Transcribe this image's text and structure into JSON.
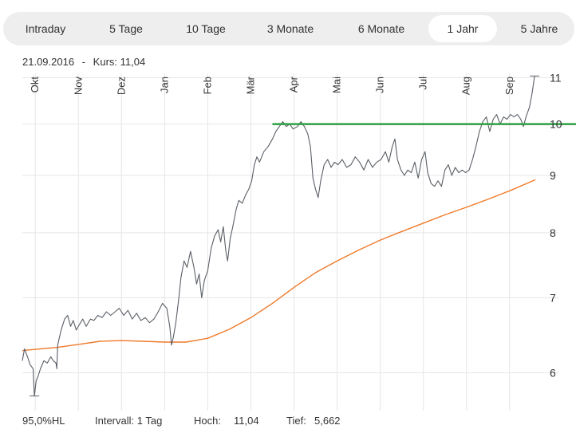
{
  "tabs": [
    {
      "label": "Intraday",
      "active": false
    },
    {
      "label": "5 Tage",
      "active": false
    },
    {
      "label": "10 Tage",
      "active": false
    },
    {
      "label": "3 Monate",
      "active": false
    },
    {
      "label": "6 Monate",
      "active": false
    },
    {
      "label": "1 Jahr",
      "active": true
    },
    {
      "label": "5 Jahre",
      "active": false
    }
  ],
  "info": {
    "date": "21.09.2016",
    "separator": "-",
    "price_label": "Kurs: 11,04"
  },
  "footer": {
    "hl": "95,0%HL",
    "interval": "Intervall: 1 Tag",
    "high_label": "Hoch:",
    "high_value": "11,04",
    "low_label": "Tief:",
    "low_value": "5,662"
  },
  "colors": {
    "price": "#5a5f66",
    "moving_average": "#f07a2a",
    "resistance": "#2ea043",
    "grid": "#e6e6e6"
  },
  "chart_data": {
    "type": "line",
    "x_unit": "month index (0 = start of Oktober 2015)",
    "xlim": [
      -0.3,
      11.8
    ],
    "ylim": [
      5.55,
      11.1
    ],
    "y_scale": "log",
    "month_ticks": [
      {
        "label": "Okt",
        "x": 0
      },
      {
        "label": "Nov",
        "x": 1
      },
      {
        "label": "Dez",
        "x": 2
      },
      {
        "label": "Jan",
        "x": 3
      },
      {
        "label": "Feb",
        "x": 4
      },
      {
        "label": "Mär",
        "x": 5
      },
      {
        "label": "Apr",
        "x": 6
      },
      {
        "label": "Mai",
        "x": 7
      },
      {
        "label": "Jun",
        "x": 8
      },
      {
        "label": "Jul",
        "x": 9
      },
      {
        "label": "Aug",
        "x": 10
      },
      {
        "label": "Sep",
        "x": 11
      }
    ],
    "y_ticks": [
      {
        "label": "6",
        "value": 6
      },
      {
        "label": "7",
        "value": 7
      },
      {
        "label": "8",
        "value": 8
      },
      {
        "label": "9",
        "value": 9
      },
      {
        "label": "10",
        "value": 10
      },
      {
        "label": "11",
        "value": 11
      }
    ],
    "grid": true,
    "series": [
      {
        "key": "price",
        "points": [
          [
            -0.3,
            6.15
          ],
          [
            -0.25,
            6.3
          ],
          [
            -0.18,
            6.2
          ],
          [
            -0.12,
            6.1
          ],
          [
            -0.05,
            6.05
          ],
          [
            -0.02,
            5.72
          ],
          [
            0.02,
            5.9
          ],
          [
            0.06,
            5.95
          ],
          [
            0.12,
            6.05
          ],
          [
            0.2,
            6.15
          ],
          [
            0.28,
            6.12
          ],
          [
            0.36,
            6.2
          ],
          [
            0.42,
            6.15
          ],
          [
            0.48,
            6.12
          ],
          [
            0.5,
            6.05
          ],
          [
            0.52,
            6.35
          ],
          [
            0.6,
            6.55
          ],
          [
            0.68,
            6.7
          ],
          [
            0.75,
            6.75
          ],
          [
            0.82,
            6.6
          ],
          [
            0.88,
            6.68
          ],
          [
            0.95,
            6.55
          ],
          [
            1.02,
            6.62
          ],
          [
            1.1,
            6.7
          ],
          [
            1.18,
            6.6
          ],
          [
            1.28,
            6.7
          ],
          [
            1.36,
            6.68
          ],
          [
            1.45,
            6.75
          ],
          [
            1.55,
            6.72
          ],
          [
            1.65,
            6.8
          ],
          [
            1.75,
            6.75
          ],
          [
            1.85,
            6.8
          ],
          [
            1.95,
            6.85
          ],
          [
            2.05,
            6.75
          ],
          [
            2.15,
            6.82
          ],
          [
            2.25,
            6.7
          ],
          [
            2.35,
            6.78
          ],
          [
            2.45,
            6.68
          ],
          [
            2.55,
            6.72
          ],
          [
            2.65,
            6.65
          ],
          [
            2.75,
            6.7
          ],
          [
            2.85,
            6.8
          ],
          [
            2.95,
            6.92
          ],
          [
            3.05,
            6.85
          ],
          [
            3.12,
            6.6
          ],
          [
            3.16,
            6.35
          ],
          [
            3.2,
            6.45
          ],
          [
            3.26,
            6.65
          ],
          [
            3.32,
            6.95
          ],
          [
            3.38,
            7.3
          ],
          [
            3.45,
            7.55
          ],
          [
            3.52,
            7.45
          ],
          [
            3.6,
            7.7
          ],
          [
            3.68,
            7.45
          ],
          [
            3.74,
            7.2
          ],
          [
            3.8,
            7.35
          ],
          [
            3.86,
            7.0
          ],
          [
            3.92,
            7.25
          ],
          [
            4.0,
            7.4
          ],
          [
            4.08,
            7.75
          ],
          [
            4.16,
            7.95
          ],
          [
            4.24,
            8.05
          ],
          [
            4.3,
            7.85
          ],
          [
            4.36,
            8.1
          ],
          [
            4.42,
            7.7
          ],
          [
            4.46,
            7.55
          ],
          [
            4.52,
            7.9
          ],
          [
            4.58,
            8.1
          ],
          [
            4.66,
            8.4
          ],
          [
            4.72,
            8.55
          ],
          [
            4.8,
            8.5
          ],
          [
            4.88,
            8.65
          ],
          [
            4.95,
            8.75
          ],
          [
            5.02,
            8.9
          ],
          [
            5.08,
            9.2
          ],
          [
            5.14,
            9.35
          ],
          [
            5.2,
            9.25
          ],
          [
            5.3,
            9.45
          ],
          [
            5.4,
            9.55
          ],
          [
            5.5,
            9.7
          ],
          [
            5.58,
            9.85
          ],
          [
            5.66,
            9.95
          ],
          [
            5.74,
            10.05
          ],
          [
            5.82,
            9.95
          ],
          [
            5.9,
            10.0
          ],
          [
            5.98,
            9.9
          ],
          [
            6.08,
            9.95
          ],
          [
            6.16,
            10.05
          ],
          [
            6.24,
            9.95
          ],
          [
            6.32,
            9.8
          ],
          [
            6.38,
            9.55
          ],
          [
            6.44,
            8.95
          ],
          [
            6.5,
            8.75
          ],
          [
            6.56,
            8.6
          ],
          [
            6.62,
            8.9
          ],
          [
            6.7,
            9.2
          ],
          [
            6.78,
            9.3
          ],
          [
            6.86,
            9.15
          ],
          [
            6.94,
            9.25
          ],
          [
            7.02,
            9.2
          ],
          [
            7.12,
            9.3
          ],
          [
            7.22,
            9.15
          ],
          [
            7.32,
            9.2
          ],
          [
            7.42,
            9.35
          ],
          [
            7.52,
            9.25
          ],
          [
            7.62,
            9.1
          ],
          [
            7.72,
            9.3
          ],
          [
            7.82,
            9.15
          ],
          [
            7.92,
            9.25
          ],
          [
            8.02,
            9.3
          ],
          [
            8.12,
            9.45
          ],
          [
            8.2,
            9.25
          ],
          [
            8.28,
            9.55
          ],
          [
            8.34,
            9.7
          ],
          [
            8.4,
            9.3
          ],
          [
            8.48,
            9.1
          ],
          [
            8.56,
            9.0
          ],
          [
            8.64,
            9.1
          ],
          [
            8.72,
            9.05
          ],
          [
            8.8,
            9.25
          ],
          [
            8.88,
            8.95
          ],
          [
            8.96,
            9.3
          ],
          [
            9.04,
            9.45
          ],
          [
            9.1,
            9.05
          ],
          [
            9.18,
            8.85
          ],
          [
            9.26,
            8.8
          ],
          [
            9.34,
            8.9
          ],
          [
            9.42,
            8.8
          ],
          [
            9.5,
            9.1
          ],
          [
            9.58,
            9.2
          ],
          [
            9.66,
            9.0
          ],
          [
            9.74,
            9.15
          ],
          [
            9.82,
            9.05
          ],
          [
            9.9,
            9.1
          ],
          [
            9.98,
            9.05
          ],
          [
            10.06,
            9.1
          ],
          [
            10.14,
            9.3
          ],
          [
            10.22,
            9.55
          ],
          [
            10.3,
            9.85
          ],
          [
            10.38,
            10.05
          ],
          [
            10.46,
            10.15
          ],
          [
            10.54,
            9.85
          ],
          [
            10.62,
            10.1
          ],
          [
            10.7,
            10.2
          ],
          [
            10.78,
            10.0
          ],
          [
            10.86,
            10.15
          ],
          [
            10.94,
            10.1
          ],
          [
            11.02,
            10.2
          ],
          [
            11.1,
            10.15
          ],
          [
            11.18,
            10.2
          ],
          [
            11.26,
            10.1
          ],
          [
            11.32,
            9.95
          ],
          [
            11.38,
            10.15
          ],
          [
            11.46,
            10.35
          ],
          [
            11.52,
            10.65
          ],
          [
            11.58,
            11.04
          ]
        ]
      },
      {
        "key": "moving_average",
        "points": [
          [
            -0.3,
            6.28
          ],
          [
            0.5,
            6.32
          ],
          [
            1.0,
            6.36
          ],
          [
            1.5,
            6.4
          ],
          [
            2.0,
            6.41
          ],
          [
            2.5,
            6.4
          ],
          [
            3.0,
            6.39
          ],
          [
            3.5,
            6.39
          ],
          [
            4.0,
            6.44
          ],
          [
            4.5,
            6.56
          ],
          [
            5.0,
            6.72
          ],
          [
            5.5,
            6.92
          ],
          [
            6.0,
            7.15
          ],
          [
            6.5,
            7.37
          ],
          [
            7.0,
            7.55
          ],
          [
            7.5,
            7.72
          ],
          [
            8.0,
            7.88
          ],
          [
            8.5,
            8.02
          ],
          [
            9.0,
            8.16
          ],
          [
            9.5,
            8.3
          ],
          [
            10.0,
            8.43
          ],
          [
            10.5,
            8.57
          ],
          [
            11.0,
            8.72
          ],
          [
            11.6,
            8.92
          ]
        ]
      }
    ],
    "resistance_level": {
      "y": 10.0,
      "x_start": 5.5
    }
  }
}
